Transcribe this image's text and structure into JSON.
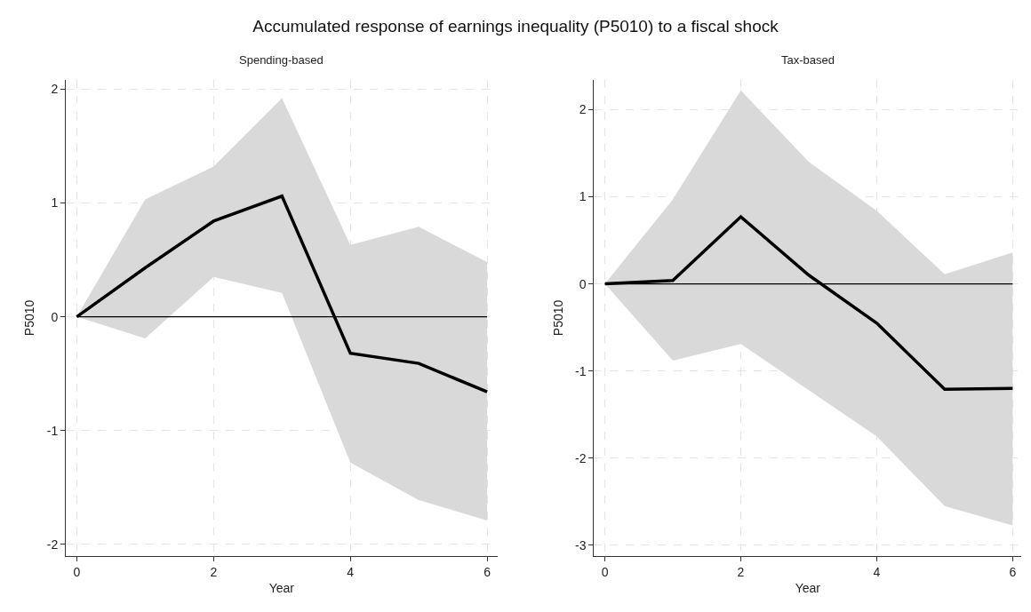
{
  "chart_data": [
    {
      "type": "line",
      "title": "Accumulated response of earnings inequality (P5010) to a fiscal shock",
      "subtitle": "Spending-based",
      "xlabel": "Year",
      "ylabel": "P5010",
      "x": [
        0,
        1,
        2,
        3,
        4,
        5,
        6
      ],
      "series": [
        {
          "color": "#000000",
          "values": [
            0,
            0.43,
            0.84,
            1.06,
            -0.32,
            -0.41,
            -0.66
          ],
          "lower": [
            0,
            -0.19,
            0.35,
            0.21,
            -1.28,
            -1.61,
            -1.79
          ],
          "upper": [
            0,
            1.03,
            1.32,
            1.92,
            0.63,
            0.79,
            0.48
          ]
        }
      ],
      "xlim": [
        -0.16,
        6.15
      ],
      "xticks": [
        0,
        2,
        4,
        6
      ],
      "ylim": [
        -2.1,
        2.08
      ],
      "yticks": [
        -2,
        -1,
        0,
        1,
        2
      ],
      "ref_lines": [
        {
          "axis": "y",
          "value": 0,
          "color": "#000000"
        }
      ],
      "grid": true,
      "marker": "none",
      "line_style": "solid"
    },
    {
      "type": "line",
      "subtitle": "Tax-based",
      "xlabel": "Year",
      "ylabel": "P5010",
      "x": [
        0,
        1,
        2,
        3,
        4,
        5,
        6
      ],
      "series": [
        {
          "color": "#000000",
          "values": [
            0,
            0.04,
            0.77,
            0.1,
            -0.45,
            -1.21,
            -1.2
          ],
          "lower": [
            0,
            -0.88,
            -0.69,
            -1.22,
            -1.75,
            -2.55,
            -2.77
          ],
          "upper": [
            0,
            0.97,
            2.22,
            1.4,
            0.84,
            0.11,
            0.36
          ]
        }
      ],
      "xlim": [
        -0.16,
        6.13
      ],
      "xticks": [
        0,
        2,
        4,
        6
      ],
      "ylim": [
        -3.12,
        2.34
      ],
      "yticks": [
        -3,
        -2,
        -1,
        0,
        1,
        2
      ],
      "ref_lines": [
        {
          "axis": "y",
          "value": 0,
          "color": "#000000"
        }
      ],
      "grid": true,
      "marker": "none",
      "line_style": "solid"
    }
  ]
}
